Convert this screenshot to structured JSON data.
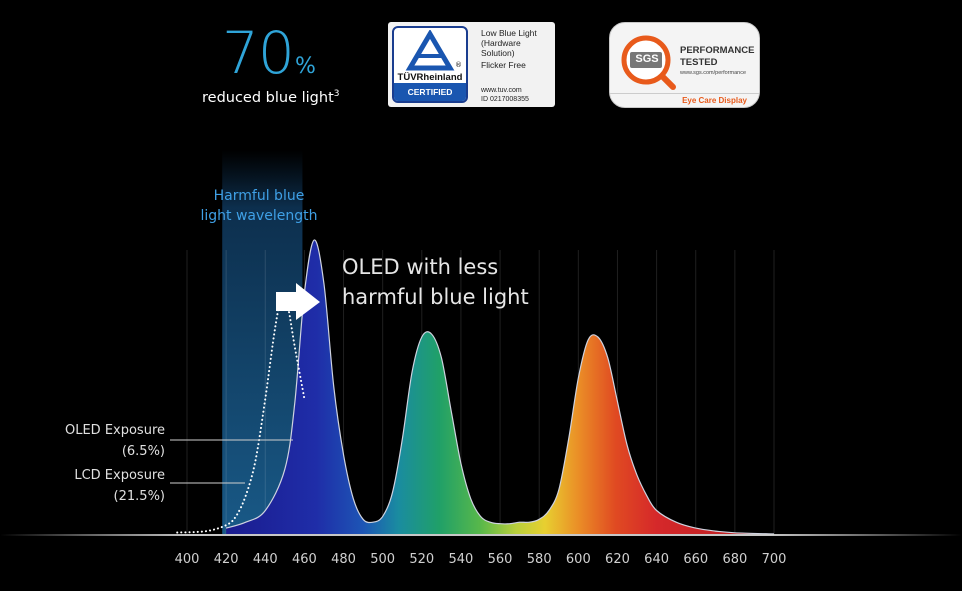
{
  "stat": {
    "value": "70",
    "unit": "%",
    "caption": "reduced blue light",
    "footnote": "3"
  },
  "tuv_badge": {
    "brand": "TÜVRheinland",
    "registered": "®",
    "certified": "CERTIFIED",
    "line1": "Low Blue Light",
    "line2": "(Hardware",
    "line3": "Solution)",
    "line4": "Flicker Free",
    "url": "www.tuv.com",
    "id": "ID  0217008355"
  },
  "sgs_badge": {
    "logo_text": "SGS",
    "line1": "PERFORMANCE",
    "line2": "TESTED",
    "url": "www.sgs.com/performance",
    "eye_care": "Eye Care Display"
  },
  "colors": {
    "accent_blue": "#2fa4d8",
    "harmful_label": "#3fa0e6",
    "tuv_blue": "#1a56b0",
    "sgs_orange": "#e85a1b"
  },
  "chart_data": {
    "type": "area",
    "title": "",
    "xlabel": "",
    "ylabel": "",
    "xlim": [
      390,
      712
    ],
    "ylim": [
      0,
      1
    ],
    "x_ticks": [
      400,
      420,
      440,
      460,
      480,
      500,
      520,
      540,
      560,
      580,
      600,
      620,
      640,
      660,
      680,
      700
    ],
    "grid": "vertical",
    "highlight_band": {
      "from": 418,
      "to": 459,
      "label_line1": "Harmful blue",
      "label_line2": "light wavelength"
    },
    "annotation": {
      "line1": "OLED with less",
      "line2": "harmful blue light"
    },
    "legend": [
      {
        "name": "OLED Exposure",
        "value": "(6.5%)"
      },
      {
        "name": "LCD Exposure",
        "value": "(21.5%)"
      }
    ],
    "series": [
      {
        "name": "OLED",
        "style": "filled spectrum",
        "points": [
          [
            420,
            0.02
          ],
          [
            430,
            0.04
          ],
          [
            440,
            0.08
          ],
          [
            450,
            0.22
          ],
          [
            455,
            0.44
          ],
          [
            460,
            0.82
          ],
          [
            465,
            1.0
          ],
          [
            470,
            0.85
          ],
          [
            475,
            0.5
          ],
          [
            480,
            0.27
          ],
          [
            485,
            0.12
          ],
          [
            490,
            0.05
          ],
          [
            495,
            0.04
          ],
          [
            500,
            0.06
          ],
          [
            505,
            0.14
          ],
          [
            510,
            0.32
          ],
          [
            515,
            0.55
          ],
          [
            520,
            0.67
          ],
          [
            525,
            0.68
          ],
          [
            530,
            0.6
          ],
          [
            535,
            0.42
          ],
          [
            540,
            0.24
          ],
          [
            545,
            0.12
          ],
          [
            550,
            0.06
          ],
          [
            555,
            0.04
          ],
          [
            560,
            0.035
          ],
          [
            565,
            0.035
          ],
          [
            570,
            0.04
          ],
          [
            575,
            0.04
          ],
          [
            580,
            0.05
          ],
          [
            585,
            0.08
          ],
          [
            590,
            0.15
          ],
          [
            595,
            0.32
          ],
          [
            600,
            0.53
          ],
          [
            605,
            0.66
          ],
          [
            610,
            0.67
          ],
          [
            615,
            0.6
          ],
          [
            620,
            0.45
          ],
          [
            625,
            0.3
          ],
          [
            630,
            0.2
          ],
          [
            635,
            0.13
          ],
          [
            640,
            0.08
          ],
          [
            650,
            0.04
          ],
          [
            660,
            0.02
          ],
          [
            670,
            0.01
          ],
          [
            680,
            0.004
          ],
          [
            700,
            0
          ]
        ]
      },
      {
        "name": "LCD",
        "style": "dotted",
        "points": [
          [
            395,
            0.005
          ],
          [
            410,
            0.01
          ],
          [
            420,
            0.03
          ],
          [
            425,
            0.06
          ],
          [
            430,
            0.13
          ],
          [
            435,
            0.25
          ],
          [
            440,
            0.46
          ],
          [
            445,
            0.7
          ],
          [
            448,
            0.8
          ],
          [
            450,
            0.8
          ],
          [
            452,
            0.76
          ],
          [
            455,
            0.64
          ],
          [
            460,
            0.46
          ]
        ]
      }
    ]
  }
}
